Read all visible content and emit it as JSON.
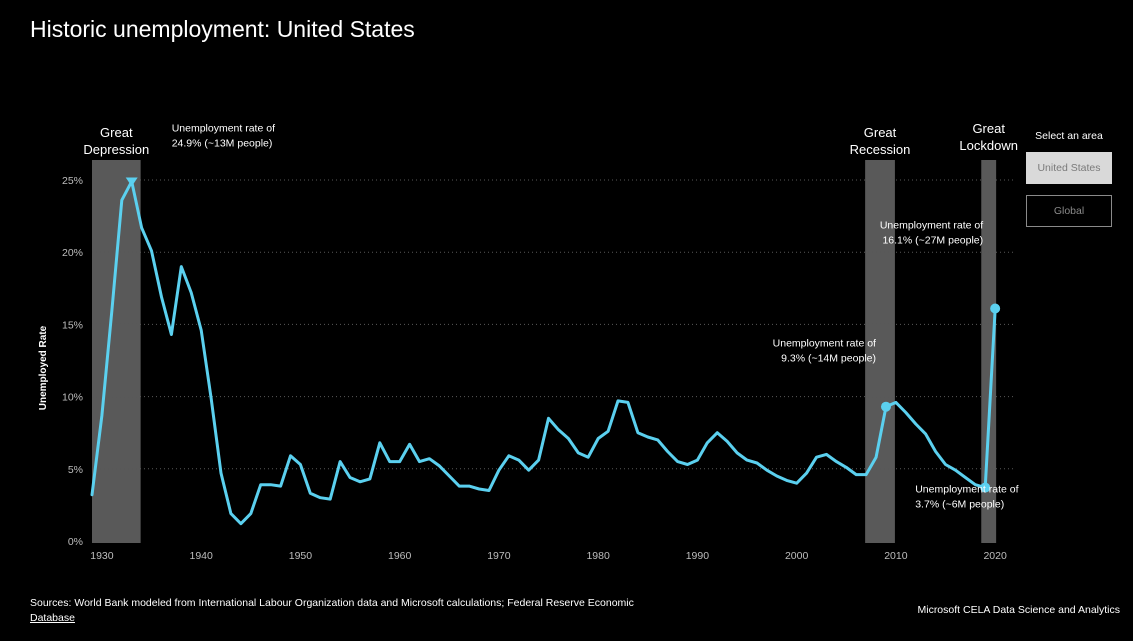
{
  "title": "Historic unemployment: United States",
  "area_selector": {
    "label": "Select an area",
    "options": [
      {
        "label": "United States",
        "selected": true
      },
      {
        "label": "Global",
        "selected": false
      }
    ]
  },
  "footer": {
    "sources_text": "Sources: World Bank modeled from International Labour Organization data and Microsoft calculations; Federal Reserve Economic",
    "sources_link": "Database",
    "credit": "Microsoft CELA Data Science and Analytics"
  },
  "colors": {
    "line": "#5bd0ef",
    "background": "#000000",
    "shade": "#595959",
    "grid": "#595959"
  },
  "chart_data": {
    "type": "line",
    "title": "Historic unemployment: United States",
    "xlabel": "",
    "ylabel": "Unemployed Rate",
    "xlim": [
      1929,
      2022
    ],
    "ylim": [
      0,
      25
    ],
    "x_ticks": [
      1930,
      1940,
      1950,
      1960,
      1970,
      1980,
      1990,
      2000,
      2010,
      2020
    ],
    "y_ticks": [
      0,
      5,
      10,
      15,
      20,
      25
    ],
    "y_tick_labels": [
      "0%",
      "5%",
      "10%",
      "15%",
      "20%",
      "25%"
    ],
    "grid": "horizontal dotted",
    "series": [
      {
        "x": [
          1929,
          1930,
          1931,
          1932,
          1933,
          1934,
          1935,
          1936,
          1937,
          1938,
          1939,
          1940,
          1941,
          1942,
          1943,
          1944,
          1945,
          1946,
          1947,
          1948,
          1949,
          1950,
          1951,
          1952,
          1953,
          1954,
          1955,
          1956,
          1957,
          1958,
          1959,
          1960,
          1961,
          1962,
          1963,
          1964,
          1965,
          1966,
          1967,
          1968,
          1969,
          1970,
          1971,
          1972,
          1973,
          1974,
          1975,
          1976,
          1977,
          1978,
          1979,
          1980,
          1981,
          1982,
          1983,
          1984,
          1985,
          1986,
          1987,
          1988,
          1989,
          1990,
          1991,
          1992,
          1993,
          1994,
          1995,
          1996,
          1997,
          1998,
          1999,
          2000,
          2001,
          2002,
          2003,
          2004,
          2005,
          2006,
          2007,
          2008,
          2009,
          2010,
          2011,
          2012,
          2013,
          2014,
          2015,
          2016,
          2017,
          2018,
          2019,
          2020
        ],
        "y": [
          3.2,
          8.7,
          15.9,
          23.6,
          24.9,
          21.7,
          20.1,
          16.9,
          14.3,
          19.0,
          17.2,
          14.6,
          9.9,
          4.7,
          1.9,
          1.2,
          1.9,
          3.9,
          3.9,
          3.8,
          5.9,
          5.3,
          3.3,
          3.0,
          2.9,
          5.5,
          4.4,
          4.1,
          4.3,
          6.8,
          5.5,
          5.5,
          6.7,
          5.5,
          5.7,
          5.2,
          4.5,
          3.8,
          3.8,
          3.6,
          3.5,
          4.9,
          5.9,
          5.6,
          4.9,
          5.6,
          8.5,
          7.7,
          7.1,
          6.1,
          5.8,
          7.1,
          7.6,
          9.7,
          9.6,
          7.5,
          7.2,
          7.0,
          6.2,
          5.5,
          5.3,
          5.6,
          6.8,
          7.5,
          6.9,
          6.1,
          5.6,
          5.4,
          4.9,
          4.5,
          4.2,
          4.0,
          4.7,
          5.8,
          6.0,
          5.5,
          5.1,
          4.6,
          4.6,
          5.8,
          9.3,
          9.6,
          8.9,
          8.1,
          7.4,
          6.2,
          5.3,
          4.9,
          4.4,
          3.9,
          3.7,
          16.1
        ]
      }
    ],
    "shaded_regions": [
      {
        "label_lines": [
          "Great",
          "Depression"
        ],
        "x_start": 1929,
        "x_end": 1933.9
      },
      {
        "label_lines": [
          "Great",
          "Recession"
        ],
        "x_start": 2006.9,
        "x_end": 2009.9
      },
      {
        "label_lines": [
          "Great",
          "Lockdown"
        ],
        "x_start": 2018.6,
        "x_end": 2020.1
      }
    ],
    "annotations": [
      {
        "x": 1933,
        "y": 24.9,
        "marker": "triangle-down",
        "lines": [
          "Unemployment rate of",
          "24.9% (~13M people)"
        ],
        "position": "top-right"
      },
      {
        "x": 2009,
        "y": 9.3,
        "marker": "circle",
        "lines": [
          "Unemployment rate of",
          "9.3% (~14M people)"
        ],
        "position": "above-left"
      },
      {
        "x": 2019,
        "y": 3.7,
        "marker": "circle",
        "lines": [
          "Unemployment rate of",
          "3.7% (~6M people)"
        ],
        "position": "below-right"
      },
      {
        "x": 2020,
        "y": 16.1,
        "marker": "circle",
        "lines": [
          "Unemployment rate of",
          "16.1% (~27M people)"
        ],
        "position": "above-left"
      }
    ]
  }
}
